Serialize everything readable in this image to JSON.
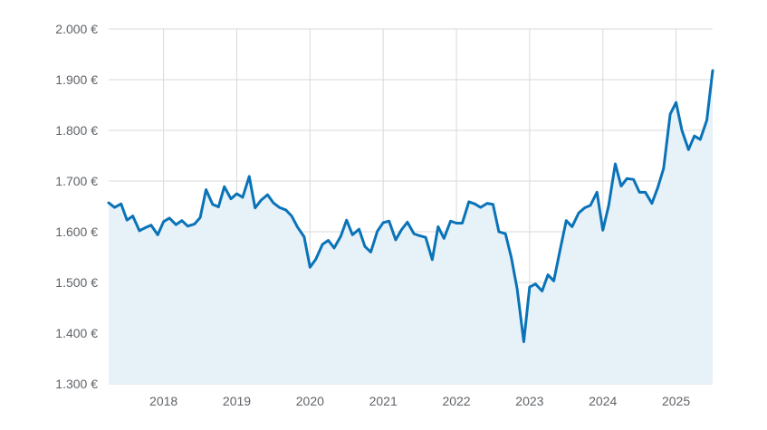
{
  "chart_data": {
    "type": "area",
    "title": "",
    "xlabel": "",
    "ylabel": "",
    "y_unit_suffix": " €",
    "ylim": [
      1300,
      2000
    ],
    "yticks": [
      1300,
      1400,
      1500,
      1600,
      1700,
      1800,
      1900,
      2000
    ],
    "ytick_labels": [
      "1.300 €",
      "1.400 €",
      "1.500 €",
      "1.600 €",
      "1.700 €",
      "1.800 €",
      "1.900 €",
      "2.000 €"
    ],
    "xlim": [
      2017.25,
      2025.5
    ],
    "xticks": [
      2018,
      2019,
      2020,
      2021,
      2022,
      2023,
      2024,
      2025
    ],
    "xtick_labels": [
      "2018",
      "2019",
      "2020",
      "2021",
      "2022",
      "2023",
      "2024",
      "2025"
    ],
    "grid": true,
    "legend": "none",
    "colors": {
      "line": "#0a73b8",
      "fill": "#e6f1f8",
      "grid": "#d9d9d9",
      "tick_text": "#5f6368"
    },
    "series": [
      {
        "x": [
          2017.25,
          2017.33,
          2017.42,
          2017.5,
          2017.58,
          2017.67,
          2017.75,
          2017.83,
          2017.92,
          2018.0,
          2018.08,
          2018.17,
          2018.25,
          2018.33,
          2018.42,
          2018.5,
          2018.58,
          2018.67,
          2018.75,
          2018.83,
          2018.92,
          2019.0,
          2019.08,
          2019.17,
          2019.25,
          2019.33,
          2019.42,
          2019.5,
          2019.58,
          2019.67,
          2019.75,
          2019.83,
          2019.92,
          2020.0,
          2020.08,
          2020.17,
          2020.25,
          2020.33,
          2020.42,
          2020.5,
          2020.58,
          2020.67,
          2020.75,
          2020.83,
          2020.92,
          2021.0,
          2021.08,
          2021.17,
          2021.25,
          2021.33,
          2021.42,
          2021.5,
          2021.58,
          2021.67,
          2021.75,
          2021.83,
          2021.92,
          2022.0,
          2022.08,
          2022.17,
          2022.25,
          2022.33,
          2022.42,
          2022.5,
          2022.58,
          2022.67,
          2022.75,
          2022.83,
          2022.92,
          2023.0,
          2023.08,
          2023.17,
          2023.25,
          2023.33,
          2023.42,
          2023.5,
          2023.58,
          2023.67,
          2023.75,
          2023.83,
          2023.92,
          2024.0,
          2024.08,
          2024.17,
          2024.25,
          2024.33,
          2024.42,
          2024.5,
          2024.58,
          2024.67,
          2024.75,
          2024.83,
          2024.92,
          2025.0,
          2025.08,
          2025.17,
          2025.25,
          2025.33,
          2025.42,
          2025.5
        ],
        "values": [
          1657,
          1648,
          1655,
          1623,
          1631,
          1602,
          1608,
          1613,
          1594,
          1620,
          1627,
          1614,
          1622,
          1611,
          1615,
          1628,
          1683,
          1654,
          1649,
          1689,
          1665,
          1675,
          1668,
          1709,
          1647,
          1662,
          1673,
          1657,
          1648,
          1643,
          1631,
          1609,
          1590,
          1530,
          1546,
          1575,
          1583,
          1568,
          1591,
          1623,
          1594,
          1605,
          1571,
          1560,
          1601,
          1618,
          1621,
          1584,
          1604,
          1619,
          1596,
          1592,
          1589,
          1545,
          1610,
          1587,
          1621,
          1617,
          1617,
          1659,
          1655,
          1648,
          1656,
          1654,
          1600,
          1596,
          1549,
          1487,
          1383,
          1491,
          1497,
          1483,
          1515,
          1503,
          1567,
          1622,
          1610,
          1637,
          1647,
          1652,
          1678,
          1603,
          1652,
          1734,
          1690,
          1705,
          1703,
          1678,
          1678,
          1656,
          1687,
          1725,
          1832,
          1855,
          1800,
          1762,
          1789,
          1782,
          1820,
          1918
        ]
      }
    ]
  }
}
